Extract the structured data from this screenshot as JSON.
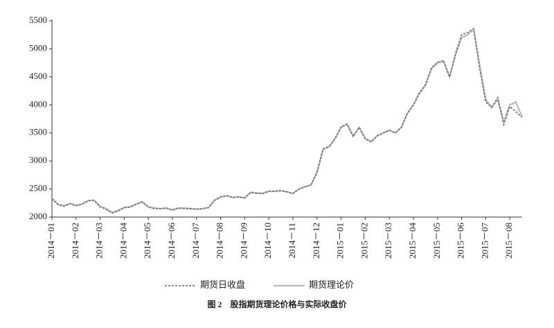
{
  "chart_data": {
    "type": "line",
    "caption": "图 2　股指期货理论价格与实际收盘价",
    "categories": [
      "2014－01",
      null,
      null,
      null,
      "2014－02",
      null,
      null,
      null,
      "2014－03",
      null,
      null,
      null,
      "2014－04",
      null,
      null,
      null,
      "2014－05",
      null,
      null,
      null,
      "2014－06",
      null,
      null,
      null,
      "2014－07",
      null,
      null,
      null,
      "2014－08",
      null,
      null,
      null,
      "2014－09",
      null,
      null,
      null,
      "2014－10",
      null,
      null,
      null,
      "2014－11",
      null,
      null,
      null,
      "2014－12",
      null,
      null,
      null,
      "2015－01",
      null,
      null,
      null,
      "2015－02",
      null,
      null,
      null,
      "2015－03",
      null,
      null,
      null,
      "2015－04",
      null,
      null,
      null,
      "2015－05",
      null,
      null,
      null,
      "2015－06",
      null,
      null,
      null,
      "2015－07",
      null,
      null,
      null,
      "2015－08",
      null,
      null
    ],
    "series": [
      {
        "name": "期货日收盘",
        "color": "#777777",
        "dash": true,
        "values": [
          2330,
          2220,
          2190,
          2240,
          2200,
          2230,
          2290,
          2300,
          2180,
          2140,
          2070,
          2110,
          2170,
          2180,
          2230,
          2270,
          2180,
          2150,
          2150,
          2160,
          2120,
          2160,
          2150,
          2150,
          2140,
          2150,
          2170,
          2300,
          2360,
          2380,
          2350,
          2360,
          2340,
          2440,
          2420,
          2420,
          2460,
          2460,
          2470,
          2450,
          2420,
          2500,
          2540,
          2570,
          2800,
          3220,
          3260,
          3400,
          3610,
          3660,
          3430,
          3600,
          3390,
          3340,
          3450,
          3500,
          3550,
          3500,
          3600,
          3850,
          4000,
          4220,
          4360,
          4660,
          4760,
          4790,
          4500,
          4920,
          5250,
          5290,
          5360,
          4650,
          4050,
          3960,
          4130,
          3650,
          3970,
          3880,
          3780
        ]
      },
      {
        "name": "期货理论价",
        "color": "#bdbdbd",
        "dash": false,
        "values": [
          2330,
          2230,
          2200,
          2240,
          2210,
          2230,
          2290,
          2300,
          2190,
          2150,
          2080,
          2120,
          2170,
          2180,
          2230,
          2270,
          2180,
          2160,
          2150,
          2160,
          2130,
          2160,
          2160,
          2150,
          2140,
          2150,
          2170,
          2300,
          2360,
          2380,
          2350,
          2360,
          2340,
          2440,
          2430,
          2420,
          2460,
          2460,
          2470,
          2450,
          2420,
          2500,
          2540,
          2570,
          2800,
          3200,
          3250,
          3400,
          3600,
          3650,
          3450,
          3600,
          3400,
          3350,
          3450,
          3500,
          3550,
          3500,
          3600,
          3850,
          4000,
          4200,
          4350,
          4650,
          4750,
          4780,
          4500,
          4900,
          5200,
          5250,
          5350,
          4700,
          4100,
          3950,
          4100,
          3700,
          4000,
          4050,
          3800
        ]
      }
    ],
    "ylim": [
      2000,
      5500
    ],
    "yticks": [
      2000,
      2500,
      3000,
      3500,
      4000,
      4500,
      5000,
      5500
    ]
  }
}
